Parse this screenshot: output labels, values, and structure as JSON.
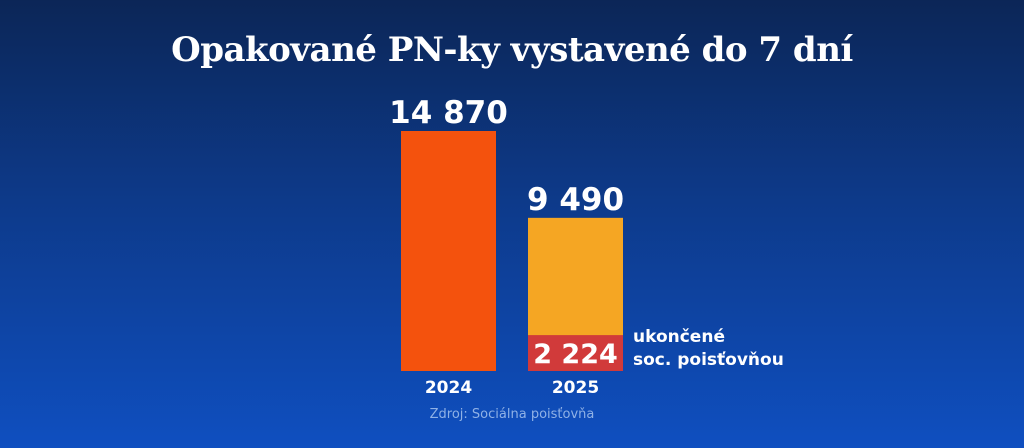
{
  "chart_data": {
    "type": "bar",
    "title": "Opakované PN-ky vystavené do 7 dní",
    "categories": [
      "2024",
      "2025"
    ],
    "values": [
      14870,
      9490
    ],
    "value_labels": [
      "14 870",
      "9 490"
    ],
    "sub_series": {
      "name": "ukončené soc. poisťovňou",
      "category": "2025",
      "value": 2224,
      "value_label": "2 224"
    },
    "annotation_lines": [
      "ukončené",
      "soc. poisťovňou"
    ],
    "source": "Zdroj: Sociálna poisťovňa",
    "ylim": [
      0,
      14870
    ],
    "grid": false,
    "colors": {
      "bar_2024": "#f4520d",
      "bar_2025": "#f5a623",
      "sub_bar": "#d13a3a",
      "text": "#ffffff",
      "source_text": "#8fb1e6"
    }
  }
}
